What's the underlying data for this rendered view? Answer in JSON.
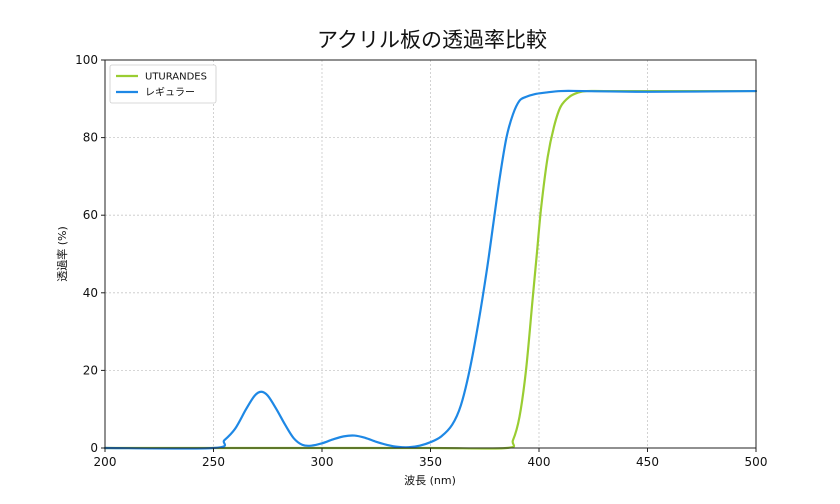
{
  "chart_data": {
    "type": "line",
    "title": "アクリル板の透過率比較",
    "xlabel": "波長 (nm)",
    "ylabel": "透過率 (%)",
    "xlim": [
      200,
      500
    ],
    "ylim": [
      0,
      100
    ],
    "xticks": [
      200,
      250,
      300,
      350,
      400,
      450,
      500
    ],
    "yticks": [
      0,
      20,
      40,
      60,
      80,
      100
    ],
    "grid": true,
    "legend_position": "upper left",
    "series": [
      {
        "name": "UTURANDES",
        "color": "#9acd32",
        "x": [
          200,
          250,
          300,
          350,
          385,
          388,
          391,
          394,
          397,
          399,
          401,
          404,
          407,
          410,
          414,
          418,
          422,
          430,
          450,
          500
        ],
        "y": [
          0,
          0,
          0,
          0,
          0,
          2,
          8,
          20,
          38,
          50,
          62,
          75,
          83,
          88,
          90.5,
          91.6,
          92,
          92,
          92,
          92
        ]
      },
      {
        "name": "レギュラー",
        "color": "#1e88e5",
        "x": [
          200,
          250,
          255,
          260,
          265,
          269,
          272,
          275,
          279,
          283,
          287,
          291,
          295,
          300,
          305,
          310,
          315,
          320,
          325,
          330,
          335,
          340,
          345,
          350,
          355,
          360,
          364,
          368,
          372,
          376,
          379,
          382,
          385,
          388,
          391,
          394,
          398,
          403,
          410,
          420,
          450,
          500
        ],
        "y": [
          0,
          0,
          2,
          5,
          10,
          13.5,
          14.5,
          13.5,
          10,
          6,
          2.5,
          0.8,
          0.6,
          1.2,
          2.2,
          3,
          3.2,
          2.6,
          1.6,
          0.8,
          0.3,
          0.2,
          0.6,
          1.5,
          3,
          6,
          11,
          20,
          32,
          46,
          58,
          70,
          80,
          86,
          89.5,
          90.5,
          91.2,
          91.6,
          92,
          92,
          91.8,
          92
        ]
      }
    ]
  }
}
